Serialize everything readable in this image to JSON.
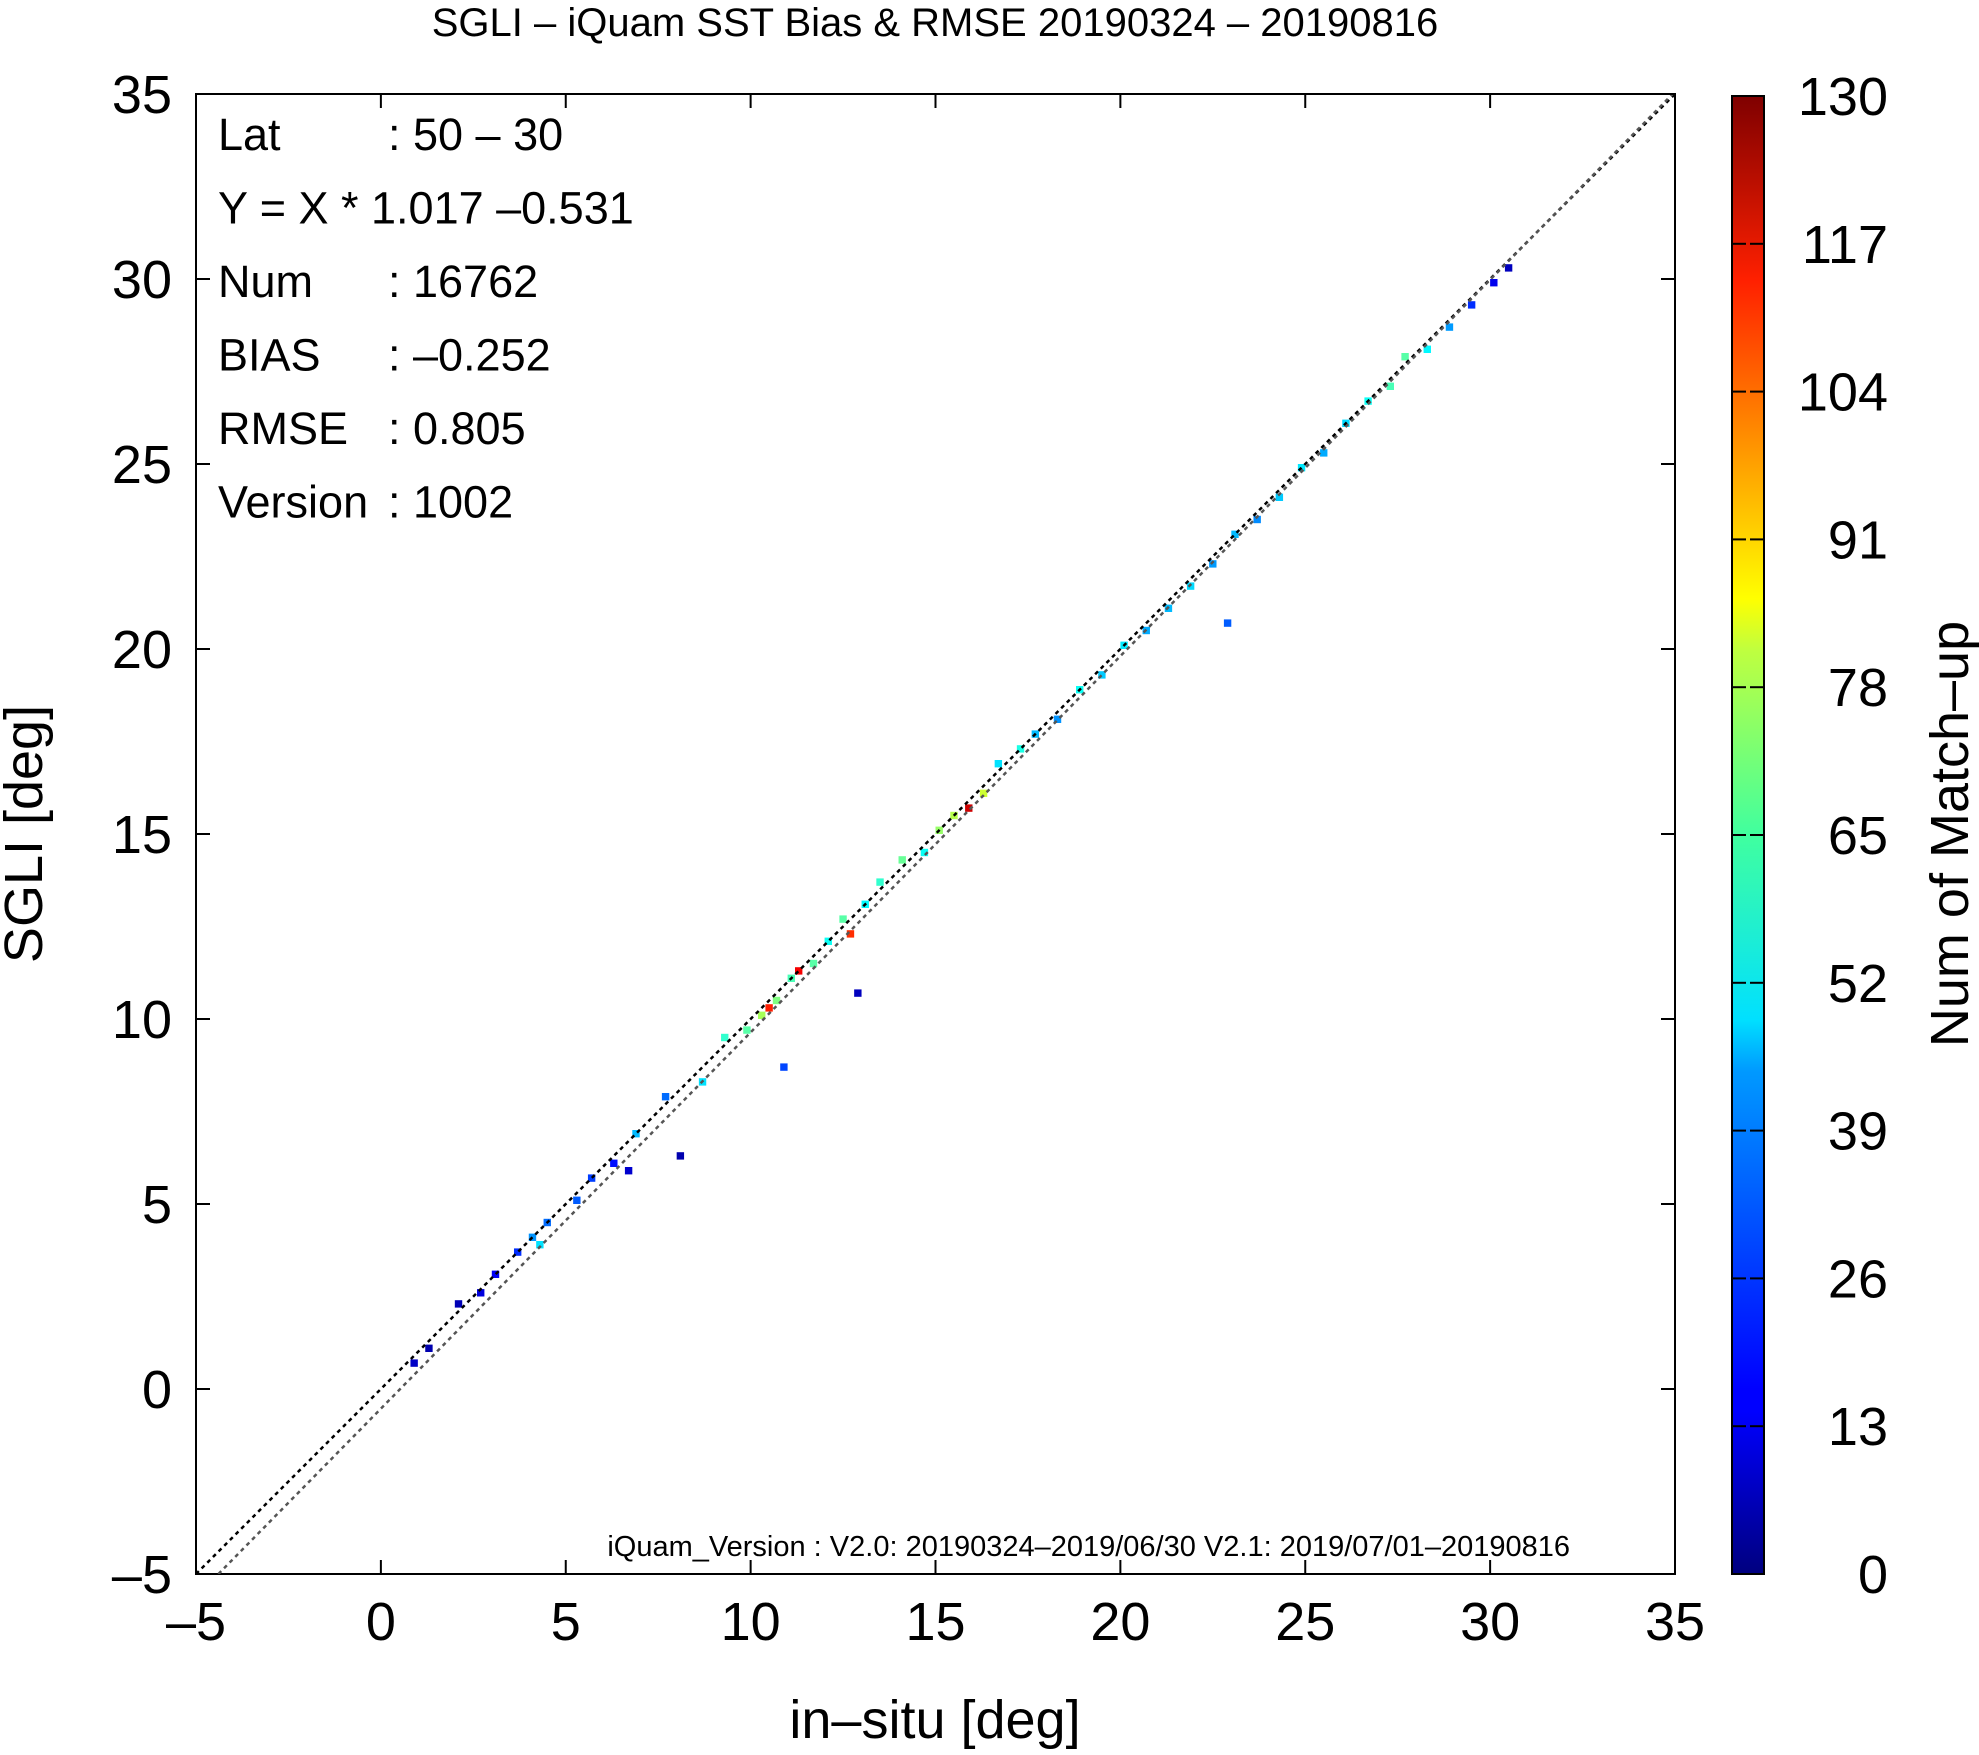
{
  "chart_data": {
    "type": "heatmap",
    "title": "SGLI – iQuam  SST Bias & RMSE 20190324 – 20190816",
    "xlabel": "in–situ [deg]",
    "ylabel": "SGLI [deg]",
    "xlim": [
      -5,
      35
    ],
    "ylim": [
      -5,
      35
    ],
    "xticks": [
      -5,
      0,
      5,
      10,
      15,
      20,
      25,
      30,
      35
    ],
    "yticks": [
      -5,
      0,
      5,
      10,
      15,
      20,
      25,
      30,
      35
    ],
    "xtick_labels": [
      "–5",
      "0",
      "5",
      "10",
      "15",
      "20",
      "25",
      "30",
      "35"
    ],
    "ytick_labels": [
      "–5",
      "0",
      "5",
      "10",
      "15",
      "20",
      "25",
      "30",
      "35"
    ],
    "grid": false,
    "colorbar": {
      "label": "Num of Match–up",
      "range": [
        0,
        130
      ],
      "ticks": [
        0,
        13,
        26,
        39,
        52,
        65,
        78,
        91,
        104,
        117,
        130
      ],
      "colormap": "jet"
    },
    "stats": [
      {
        "label": "Lat",
        "value": ": 50 – 30"
      },
      {
        "label": "Y = X * 1.017 –0.531",
        "value": ""
      },
      {
        "label": "Num",
        "value": ": 16762"
      },
      {
        "label": "BIAS",
        "value": ": –0.252"
      },
      {
        "label": "RMSE",
        "value": ": 0.805"
      },
      {
        "label": "Version",
        "value": ": 1002"
      }
    ],
    "reference_lines": [
      {
        "slope": 1,
        "intercept": 0,
        "style": "dotted",
        "color": "#000000"
      },
      {
        "slope": 1.017,
        "intercept": -0.531,
        "style": "dotted",
        "color": "#555555"
      }
    ],
    "footnote": "iQuam_Version : V2.0: 20190324–2019/06/30 V2.1: 2019/07/01–20190816",
    "bin_size": 0.2,
    "bins": [
      [
        0.8,
        0.6,
        9
      ],
      [
        1.2,
        1.0,
        6
      ],
      [
        2.0,
        2.2,
        7
      ],
      [
        2.6,
        2.5,
        12
      ],
      [
        3.0,
        3.0,
        15
      ],
      [
        3.6,
        3.6,
        22
      ],
      [
        4.0,
        4.0,
        35
      ],
      [
        4.4,
        4.4,
        30
      ],
      [
        4.2,
        3.8,
        45
      ],
      [
        5.2,
        5.0,
        28
      ],
      [
        5.6,
        5.6,
        24
      ],
      [
        6.2,
        6.0,
        18
      ],
      [
        6.8,
        6.8,
        40
      ],
      [
        7.6,
        7.8,
        30
      ],
      [
        8.6,
        8.2,
        45
      ],
      [
        9.2,
        9.4,
        55
      ],
      [
        9.8,
        9.6,
        60
      ],
      [
        10.2,
        10.0,
        70
      ],
      [
        10.4,
        10.2,
        110
      ],
      [
        10.6,
        10.4,
        65
      ],
      [
        11.0,
        11.0,
        58
      ],
      [
        11.2,
        11.2,
        115
      ],
      [
        11.6,
        11.4,
        60
      ],
      [
        12.0,
        12.0,
        50
      ],
      [
        12.6,
        12.2,
        108
      ],
      [
        12.4,
        12.6,
        60
      ],
      [
        13.0,
        13.0,
        48
      ],
      [
        13.4,
        13.6,
        55
      ],
      [
        14.0,
        14.2,
        62
      ],
      [
        14.6,
        14.4,
        50
      ],
      [
        15.0,
        15.0,
        68
      ],
      [
        15.4,
        15.4,
        72
      ],
      [
        15.8,
        15.6,
        120
      ],
      [
        16.2,
        16.0,
        75
      ],
      [
        16.6,
        16.8,
        45
      ],
      [
        17.2,
        17.2,
        52
      ],
      [
        17.6,
        17.6,
        40
      ],
      [
        18.2,
        18.0,
        35
      ],
      [
        18.8,
        18.8,
        50
      ],
      [
        19.4,
        19.2,
        42
      ],
      [
        20.0,
        20.0,
        46
      ],
      [
        20.6,
        20.4,
        38
      ],
      [
        21.2,
        21.0,
        40
      ],
      [
        21.8,
        21.6,
        44
      ],
      [
        22.4,
        22.2,
        36
      ],
      [
        23.0,
        23.0,
        40
      ],
      [
        23.6,
        23.4,
        34
      ],
      [
        24.2,
        24.0,
        42
      ],
      [
        24.8,
        24.8,
        46
      ],
      [
        25.4,
        25.2,
        38
      ],
      [
        26.0,
        26.0,
        44
      ],
      [
        26.6,
        26.6,
        50
      ],
      [
        27.2,
        27.0,
        58
      ],
      [
        27.6,
        27.8,
        60
      ],
      [
        28.2,
        28.0,
        48
      ],
      [
        28.8,
        28.6,
        36
      ],
      [
        29.4,
        29.2,
        22
      ],
      [
        30.0,
        29.8,
        14
      ],
      [
        30.4,
        30.2,
        8
      ],
      [
        22.8,
        20.6,
        28
      ],
      [
        6.6,
        5.8,
        10
      ],
      [
        8.0,
        6.2,
        6
      ],
      [
        12.8,
        10.6,
        8
      ],
      [
        10.8,
        8.6,
        25
      ]
    ]
  }
}
